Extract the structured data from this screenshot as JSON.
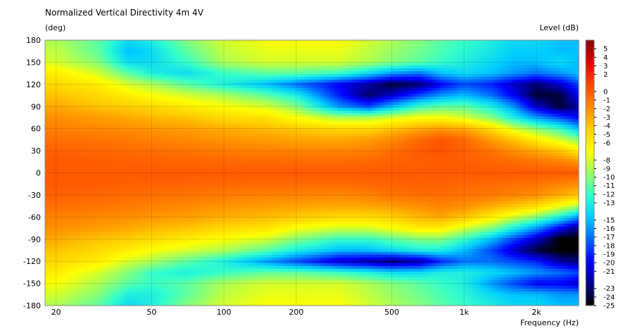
{
  "chart_data": {
    "type": "heatmap",
    "title": "Normalized Vertical Directivity 4m 4V",
    "ylabel": "(deg)",
    "xlabel": "Frequency  (Hz)",
    "colorbar_label": "Level  (dB)",
    "x_scale": "log",
    "xlim": [
      18,
      3000
    ],
    "ylim": [
      -180,
      180
    ],
    "x_ticks": [
      20,
      50,
      100,
      200,
      500,
      1000,
      2000
    ],
    "x_tick_labels": [
      "20",
      "50",
      "100",
      "200",
      "500",
      "1k",
      "2k"
    ],
    "y_ticks": [
      180,
      150,
      120,
      90,
      60,
      30,
      0,
      -30,
      -60,
      -90,
      -120,
      -150,
      -180
    ],
    "y_tick_labels": [
      "180",
      "150",
      "120",
      "90",
      "60",
      "30",
      "0",
      "-30",
      "-60",
      "-90",
      "-120",
      "-150",
      "-180"
    ],
    "colorbar_ticks": [
      5,
      4,
      3,
      2,
      0,
      -1,
      -2,
      -3,
      -4,
      -5,
      -6,
      -8,
      -9,
      -10,
      -11,
      -12,
      -13,
      -15,
      -16,
      -17,
      -18,
      -19,
      -20,
      -21,
      -23,
      -24,
      -25
    ],
    "colorbar_tick_labels": [
      "5",
      "4",
      "3",
      "2",
      "0",
      "-1",
      "-2",
      "-3",
      "-4",
      "-5",
      "-6",
      "-8",
      "-9",
      "-10",
      "-11",
      "-12",
      "-13",
      "-15",
      "-16",
      "-17",
      "-18",
      "-19",
      "-20",
      "-21",
      "-23",
      "-24",
      "-25"
    ],
    "colorbar_range": [
      -25,
      6
    ],
    "colormap": [
      "#000000",
      "#00008b",
      "#0000ff",
      "#0066ff",
      "#00ccff",
      "#33ffcc",
      "#99ff66",
      "#ffff00",
      "#ffcc00",
      "#ff8800",
      "#ff4400",
      "#e00000",
      "#800000"
    ],
    "grid": true,
    "x_samples": [
      20,
      30,
      40,
      50,
      70,
      100,
      150,
      200,
      300,
      400,
      500,
      650,
      800,
      1000,
      1300,
      1600,
      2000,
      2500,
      3000
    ],
    "y_samples": [
      180,
      165,
      150,
      135,
      120,
      105,
      90,
      75,
      60,
      45,
      30,
      15,
      0,
      -15,
      -30,
      -45,
      -60,
      -75,
      -90,
      -105,
      -120,
      -135,
      -150,
      -165,
      -180
    ],
    "z": [
      [
        -9,
        -11,
        -14,
        -13,
        -10,
        -8,
        -7,
        -7,
        -7,
        -8,
        -9,
        -10,
        -11,
        -12,
        -13,
        -14,
        -14,
        -15,
        -15
      ],
      [
        -8.5,
        -11,
        -15,
        -14,
        -11,
        -8.5,
        -7.5,
        -7.5,
        -7.5,
        -8.5,
        -9.5,
        -10.5,
        -11.5,
        -12.5,
        -13.5,
        -14.5,
        -14.5,
        -15,
        -15
      ],
      [
        -8,
        -10,
        -14,
        -14,
        -12,
        -9,
        -8,
        -8,
        -8,
        -9,
        -10,
        -11,
        -12,
        -13,
        -14,
        -15,
        -15,
        -14,
        -15
      ],
      [
        -6,
        -8,
        -11,
        -13,
        -14,
        -12,
        -11,
        -11,
        -12,
        -14,
        -16,
        -17,
        -15,
        -14,
        -15,
        -16,
        -17,
        -16,
        -15
      ],
      [
        -5,
        -6,
        -8,
        -9,
        -11,
        -13,
        -15,
        -17,
        -20,
        -22,
        -24,
        -23,
        -20,
        -18,
        -19,
        -21,
        -23,
        -21,
        -18
      ],
      [
        -4,
        -5,
        -6,
        -7,
        -8,
        -9,
        -11,
        -13,
        -19,
        -23,
        -21,
        -18,
        -16,
        -15,
        -17,
        -20,
        -24,
        -24,
        -20
      ],
      [
        -3,
        -4,
        -4.5,
        -5,
        -6,
        -7,
        -8,
        -10,
        -16,
        -18,
        -15,
        -12,
        -11,
        -11,
        -13,
        -16,
        -21,
        -24,
        -22
      ],
      [
        -2,
        -2.5,
        -3,
        -3.5,
        -4,
        -5,
        -5.5,
        -7,
        -9,
        -9,
        -8,
        -7,
        -7,
        -8,
        -10,
        -13,
        -16,
        -18,
        -20
      ],
      [
        -1.5,
        -1.8,
        -2,
        -2.3,
        -2.6,
        -3.2,
        -3.7,
        -4.2,
        -5,
        -5,
        -4,
        -3,
        -2.5,
        -3,
        -5,
        -8,
        -10,
        -12,
        -15
      ],
      [
        -0.8,
        -1,
        -1.2,
        -1.5,
        -1.8,
        -2.2,
        -2.5,
        -2.8,
        -3,
        -2.5,
        -1.8,
        -0.6,
        0.2,
        -0.5,
        -2.5,
        -4,
        -6,
        -8,
        -10
      ],
      [
        -0.3,
        -0.5,
        -0.7,
        -0.8,
        -1,
        -1.3,
        -1.5,
        -1.6,
        -1.7,
        -1.5,
        -0.8,
        0,
        0.3,
        -0.3,
        -1,
        -2,
        -3,
        -4,
        -6
      ],
      [
        0,
        -0.1,
        -0.2,
        -0.3,
        -0.4,
        -0.5,
        -0.6,
        -0.6,
        -0.6,
        -0.5,
        -0.3,
        -0.2,
        -0.1,
        -0.2,
        -0.4,
        -0.6,
        -1,
        -1.5,
        -2
      ],
      [
        0,
        0,
        0,
        0,
        0,
        0,
        0,
        0,
        0,
        0,
        0,
        0,
        0,
        0,
        0,
        0,
        0,
        0,
        0
      ],
      [
        0,
        -0.1,
        -0.2,
        -0.3,
        -0.4,
        -0.5,
        -0.6,
        -0.6,
        -0.6,
        -0.5,
        -0.3,
        -0.2,
        -0.3,
        -0.5,
        -0.6,
        -0.8,
        -1,
        -1.5,
        -2
      ],
      [
        -0.3,
        -0.5,
        -0.7,
        -0.8,
        -1,
        -1.3,
        -1.5,
        -1.6,
        -1.7,
        -1.5,
        -1,
        -0.8,
        -0.7,
        -1,
        -1.2,
        -1.5,
        -2,
        -3,
        -4
      ],
      [
        -0.8,
        -1,
        -1.2,
        -1.5,
        -1.8,
        -2.2,
        -2.5,
        -2.8,
        -3,
        -2.8,
        -2.5,
        -2,
        -1.5,
        -2,
        -3,
        -4,
        -5,
        -7,
        -9
      ],
      [
        -1.5,
        -1.8,
        -2,
        -2.3,
        -2.6,
        -3.2,
        -3.7,
        -4.2,
        -5,
        -5,
        -4.5,
        -3.5,
        -3,
        -4,
        -6,
        -8,
        -10,
        -13,
        -16
      ],
      [
        -2,
        -2.5,
        -3,
        -3.5,
        -4,
        -5,
        -5.5,
        -7,
        -8,
        -8,
        -7,
        -6,
        -6,
        -8,
        -10,
        -13,
        -16,
        -20,
        -23
      ],
      [
        -3,
        -4,
        -4.5,
        -5,
        -6,
        -7,
        -8,
        -10,
        -12,
        -12,
        -11,
        -10,
        -10,
        -12,
        -15,
        -18,
        -21,
        -25,
        -25
      ],
      [
        -4,
        -5,
        -6,
        -7,
        -8,
        -9,
        -11,
        -13,
        -15,
        -15,
        -14,
        -13,
        -13,
        -15,
        -18,
        -21,
        -24,
        -25,
        -25
      ],
      [
        -5,
        -6,
        -8,
        -9,
        -11,
        -13,
        -16,
        -18,
        -21,
        -22,
        -23,
        -22,
        -19,
        -17,
        -17,
        -18,
        -19,
        -22,
        -23
      ],
      [
        -6,
        -8,
        -10,
        -12,
        -13,
        -12,
        -11,
        -11,
        -12,
        -13,
        -14,
        -14,
        -13,
        -13,
        -14,
        -15,
        -16,
        -17,
        -18
      ],
      [
        -7,
        -9,
        -11,
        -12,
        -11,
        -9,
        -8,
        -8,
        -8,
        -9,
        -10,
        -11,
        -12,
        -13,
        -16,
        -18,
        -20,
        -20,
        -21
      ],
      [
        -8,
        -10,
        -13,
        -13,
        -11,
        -8.5,
        -7.5,
        -7.5,
        -7.5,
        -8.5,
        -9.5,
        -10.5,
        -11.5,
        -12.5,
        -14,
        -15,
        -15,
        -16,
        -16
      ],
      [
        -9,
        -11,
        -14,
        -13,
        -10,
        -8,
        -7,
        -7,
        -7,
        -8,
        -9,
        -10,
        -11,
        -12,
        -13,
        -14,
        -14,
        -15,
        -15
      ]
    ]
  }
}
